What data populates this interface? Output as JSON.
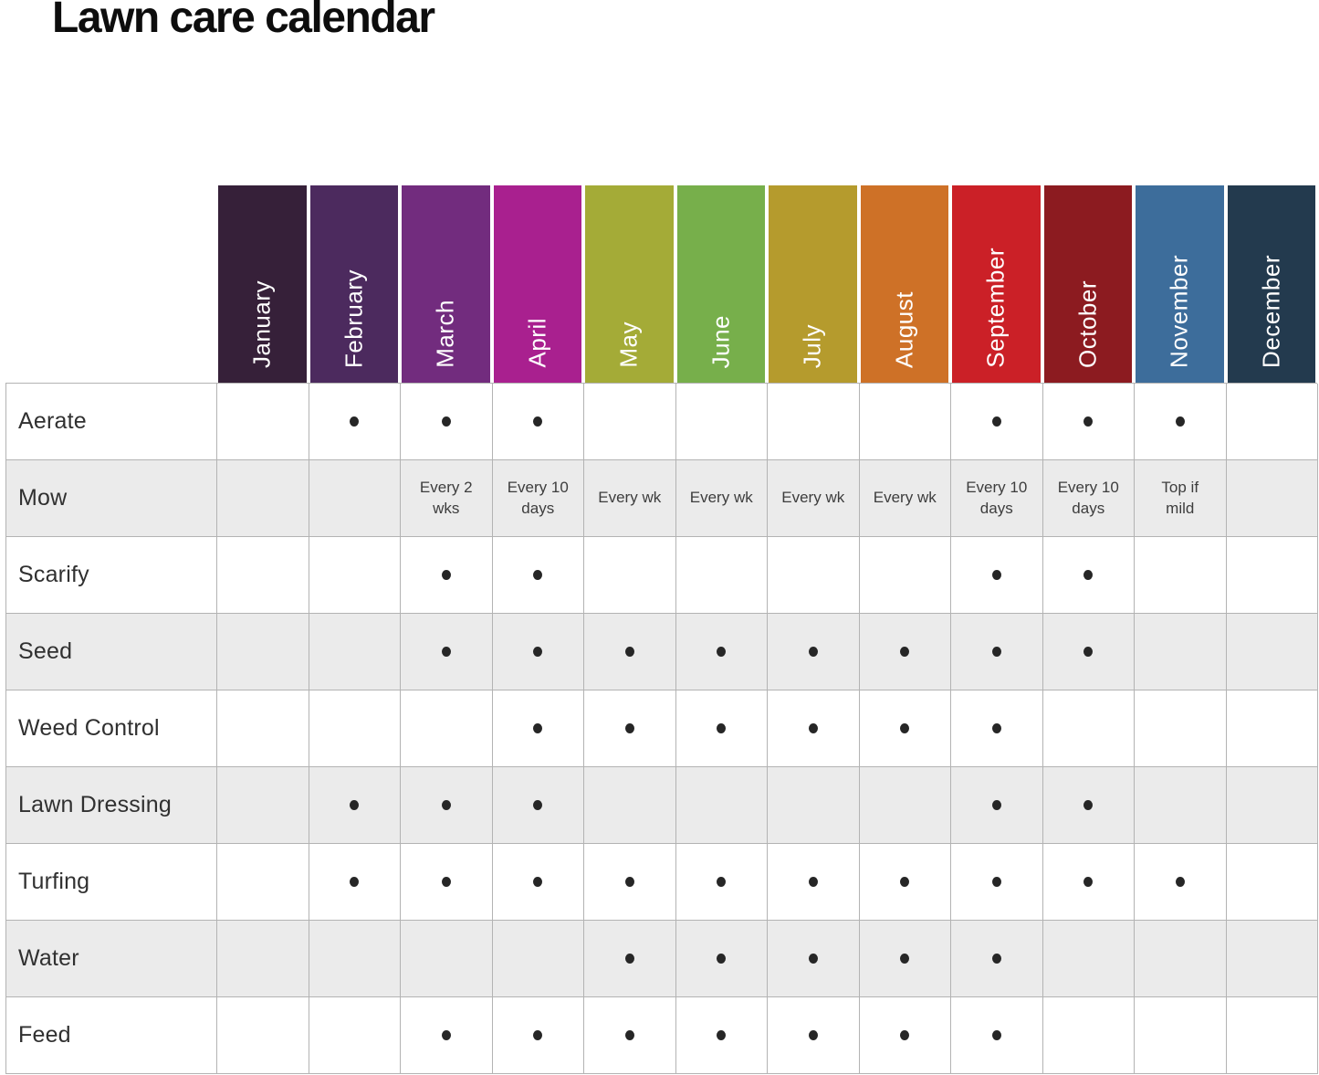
{
  "title": "Lawn care calendar",
  "style": {
    "grid_line_color": "#b3b3b3",
    "stripe_color": "#ebebeb",
    "dot_color": "#262626"
  },
  "chart_data": {
    "type": "table",
    "title": "Lawn care calendar",
    "columns": [
      "January",
      "February",
      "March",
      "April",
      "May",
      "June",
      "July",
      "August",
      "September",
      "October",
      "November",
      "December"
    ],
    "column_colors": [
      "#362039",
      "#4C2A5E",
      "#722C7E",
      "#A9208F",
      "#A4AB37",
      "#77AF4B",
      "#B59B2D",
      "#CE7127",
      "#CB2027",
      "#8C1B20",
      "#3D6D9B",
      "#233A4E"
    ],
    "marker_glyph": "•",
    "rows": [
      {
        "task": "Aerate",
        "cells": [
          "",
          "•",
          "•",
          "•",
          "",
          "",
          "",
          "",
          "•",
          "•",
          "•",
          ""
        ]
      },
      {
        "task": "Mow",
        "cells": [
          "",
          "",
          "Every 2 wks",
          "Every 10 days",
          "Every wk",
          "Every wk",
          "Every wk",
          "Every wk",
          "Every 10 days",
          "Every 10 days",
          "Top if mild",
          ""
        ]
      },
      {
        "task": "Scarify",
        "cells": [
          "",
          "",
          "•",
          "•",
          "",
          "",
          "",
          "",
          "•",
          "•",
          "",
          ""
        ]
      },
      {
        "task": "Seed",
        "cells": [
          "",
          "",
          "•",
          "•",
          "•",
          "•",
          "•",
          "•",
          "•",
          "•",
          "",
          ""
        ]
      },
      {
        "task": "Weed Control",
        "cells": [
          "",
          "",
          "",
          "•",
          "•",
          "•",
          "•",
          "•",
          "•",
          "",
          "",
          ""
        ]
      },
      {
        "task": "Lawn Dressing",
        "cells": [
          "",
          "•",
          "•",
          "•",
          "",
          "",
          "",
          "",
          "•",
          "•",
          "",
          ""
        ]
      },
      {
        "task": "Turfing",
        "cells": [
          "",
          "•",
          "•",
          "•",
          "•",
          "•",
          "•",
          "•",
          "•",
          "•",
          "•",
          ""
        ]
      },
      {
        "task": "Water",
        "cells": [
          "",
          "",
          "",
          "",
          "•",
          "•",
          "•",
          "•",
          "•",
          "",
          "",
          ""
        ]
      },
      {
        "task": "Feed",
        "cells": [
          "",
          "",
          "•",
          "•",
          "•",
          "•",
          "•",
          "•",
          "•",
          "",
          "",
          ""
        ]
      }
    ],
    "layout": {
      "grid": true,
      "legend": false,
      "stripe_rows": "even rows shaded"
    }
  }
}
